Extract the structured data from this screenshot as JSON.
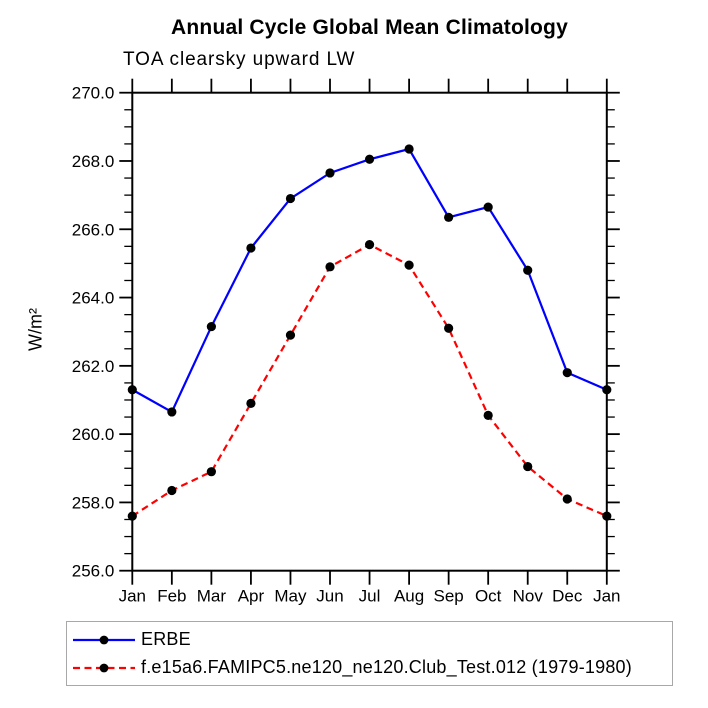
{
  "chart_data": {
    "type": "line",
    "title": "Annual Cycle Global Mean Climatology",
    "subtitle": "TOA clearsky upward LW",
    "ylabel": "W/m²",
    "x_categories": [
      "Jan",
      "Feb",
      "Mar",
      "Apr",
      "May",
      "Jun",
      "Jul",
      "Aug",
      "Sep",
      "Oct",
      "Nov",
      "Dec",
      "Jan"
    ],
    "ylim": [
      256.0,
      270.0
    ],
    "ytick_major_step": 2.0,
    "ytick_minor_step": 0.5,
    "ytick_label_format": "one_decimal",
    "grid": false,
    "legend_position": "bottom-left",
    "axis_color": "#000000",
    "series": [
      {
        "name": "ERBE",
        "color": "#0000ff",
        "line_style": "solid",
        "marker": "circle",
        "marker_color": "#000000",
        "values": [
          261.3,
          260.65,
          263.15,
          265.45,
          266.9,
          267.65,
          268.05,
          268.35,
          266.35,
          266.65,
          264.8,
          261.8,
          261.3
        ]
      },
      {
        "name": "f.e15a6.FAMIPC5.ne120_ne120.Club_Test.012 (1979-1980)",
        "color": "#ff0000",
        "line_style": "dashed",
        "marker": "circle",
        "marker_color": "#000000",
        "values": [
          257.6,
          258.35,
          258.9,
          260.9,
          262.9,
          264.9,
          265.55,
          264.95,
          263.1,
          260.55,
          259.05,
          258.1,
          257.6
        ]
      }
    ]
  }
}
